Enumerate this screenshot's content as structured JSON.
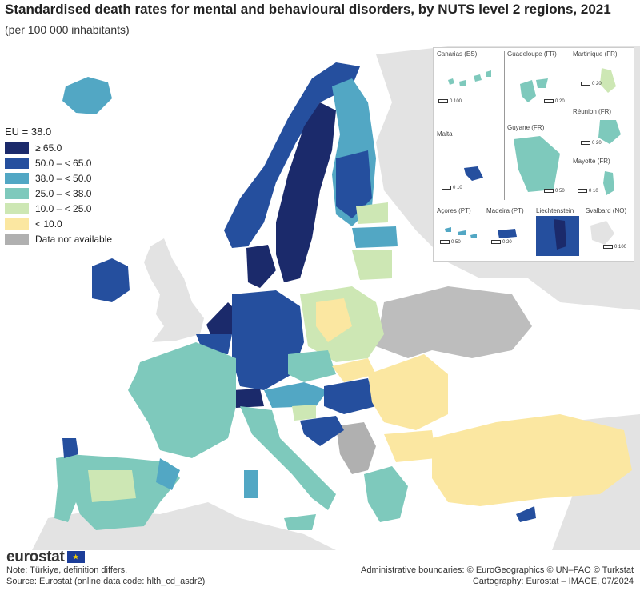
{
  "title": "Standardised death rates for mental and behavioural disorders, by NUTS level 2 regions, 2021",
  "subtitle": "(per 100 000 inhabitants)",
  "legend": {
    "eu_label": "EU = 38.0",
    "classes": [
      {
        "label": "≥ 65.0",
        "color": "#1b2a6b"
      },
      {
        "label": "50.0 – < 65.0",
        "color": "#254f9e"
      },
      {
        "label": "38.0 – < 50.0",
        "color": "#52a7c4"
      },
      {
        "label": "25.0 – < 38.0",
        "color": "#7ec9bc"
      },
      {
        "label": "10.0 – < 25.0",
        "color": "#cde7b4"
      },
      {
        "label": "< 10.0",
        "color": "#fbe7a1"
      },
      {
        "label": "Data not available",
        "color": "#b0b0b0"
      }
    ]
  },
  "insets": {
    "canarias": {
      "label": "Canarias (ES)",
      "scale": "0   100"
    },
    "guadeloupe": {
      "label": "Guadeloupe (FR)",
      "scale": "0   20"
    },
    "martinique": {
      "label": "Martinique (FR)",
      "scale": "0   20"
    },
    "reunion": {
      "label": "Réunion (FR)",
      "scale": "0   20"
    },
    "malta": {
      "label": "Malta",
      "scale": "0   10"
    },
    "guyane": {
      "label": "Guyane (FR)",
      "scale": "0   50"
    },
    "mayotte": {
      "label": "Mayotte (FR)",
      "scale": "0   10"
    },
    "acores": {
      "label": "Açores (PT)",
      "scale": "0   50"
    },
    "madeira": {
      "label": "Madeira (PT)",
      "scale": "0   20"
    },
    "liechtenstein": {
      "label": "Liechtenstein"
    },
    "svalbard": {
      "label": "Svalbard (NO)",
      "scale": "0   100"
    }
  },
  "footer": {
    "logo": "eurostat",
    "note": "Note: Türkiye, definition differs.",
    "source": "Source: Eurostat (online data code: hlth_cd_asdr2)",
    "admin": "Administrative boundaries: © EuroGeographics © UN–FAO © Turkstat",
    "cartography": "Cartography: Eurostat – IMAGE, 07/2024"
  },
  "colors": {
    "sea": "#ffffff",
    "non_eu_land": "#e3e3e3",
    "borders": "#ffffff"
  }
}
